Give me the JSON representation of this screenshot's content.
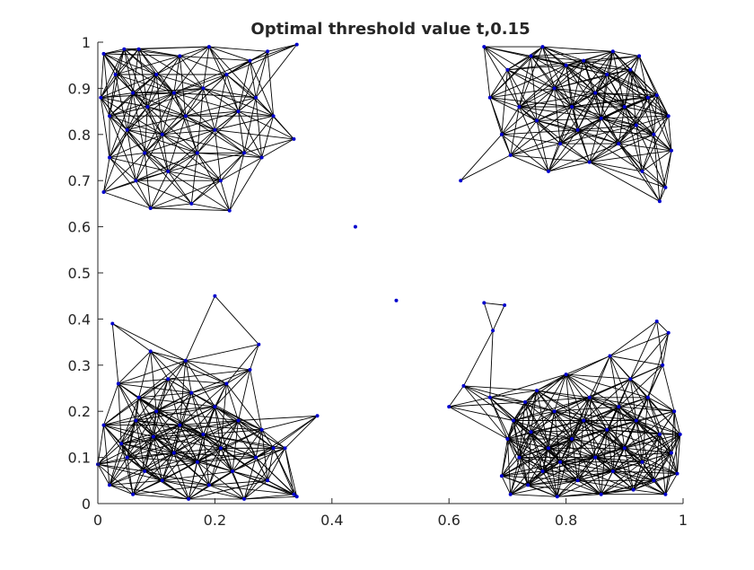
{
  "chart_data": {
    "type": "scatter",
    "title": "Optimal threshold value t,0.15",
    "xlabel": "",
    "ylabel": "",
    "xlim": [
      0,
      1
    ],
    "ylim": [
      0,
      1
    ],
    "xticks": [
      "0",
      "0.2",
      "0.4",
      "0.6",
      "0.8",
      "1"
    ],
    "yticks": [
      "0",
      "0.1",
      "0.2",
      "0.3",
      "0.4",
      "0.5",
      "0.6",
      "0.7",
      "0.8",
      "0.9",
      "1"
    ],
    "threshold": 0.15,
    "grid": false,
    "colors": {
      "point": "#0000cc",
      "edge": "#000000",
      "axis": "#262626"
    },
    "clusters": [
      {
        "label": "upper-left",
        "points": [
          [
            0.005,
            0.88
          ],
          [
            0.01,
            0.975
          ],
          [
            0.01,
            0.675
          ],
          [
            0.02,
            0.84
          ],
          [
            0.02,
            0.75
          ],
          [
            0.03,
            0.93
          ],
          [
            0.045,
            0.985
          ],
          [
            0.05,
            0.81
          ],
          [
            0.06,
            0.89
          ],
          [
            0.065,
            0.7
          ],
          [
            0.07,
            0.985
          ],
          [
            0.08,
            0.76
          ],
          [
            0.085,
            0.86
          ],
          [
            0.09,
            0.64
          ],
          [
            0.1,
            0.93
          ],
          [
            0.11,
            0.8
          ],
          [
            0.12,
            0.72
          ],
          [
            0.13,
            0.89
          ],
          [
            0.14,
            0.97
          ],
          [
            0.15,
            0.84
          ],
          [
            0.16,
            0.65
          ],
          [
            0.17,
            0.76
          ],
          [
            0.18,
            0.9
          ],
          [
            0.19,
            0.99
          ],
          [
            0.2,
            0.81
          ],
          [
            0.21,
            0.7
          ],
          [
            0.22,
            0.93
          ],
          [
            0.225,
            0.635
          ],
          [
            0.24,
            0.85
          ],
          [
            0.25,
            0.76
          ],
          [
            0.26,
            0.96
          ],
          [
            0.27,
            0.88
          ],
          [
            0.28,
            0.75
          ],
          [
            0.29,
            0.98
          ],
          [
            0.3,
            0.84
          ],
          [
            0.335,
            0.79
          ],
          [
            0.34,
            0.995
          ]
        ]
      },
      {
        "label": "upper-right",
        "points": [
          [
            0.62,
            0.7
          ],
          [
            0.66,
            0.99
          ],
          [
            0.67,
            0.88
          ],
          [
            0.69,
            0.8
          ],
          [
            0.7,
            0.94
          ],
          [
            0.705,
            0.755
          ],
          [
            0.72,
            0.86
          ],
          [
            0.74,
            0.97
          ],
          [
            0.75,
            0.83
          ],
          [
            0.76,
            0.99
          ],
          [
            0.77,
            0.72
          ],
          [
            0.78,
            0.9
          ],
          [
            0.79,
            0.78
          ],
          [
            0.8,
            0.95
          ],
          [
            0.81,
            0.86
          ],
          [
            0.82,
            0.81
          ],
          [
            0.83,
            0.96
          ],
          [
            0.84,
            0.74
          ],
          [
            0.85,
            0.89
          ],
          [
            0.86,
            0.835
          ],
          [
            0.87,
            0.93
          ],
          [
            0.88,
            0.98
          ],
          [
            0.89,
            0.78
          ],
          [
            0.9,
            0.86
          ],
          [
            0.91,
            0.94
          ],
          [
            0.92,
            0.82
          ],
          [
            0.925,
            0.97
          ],
          [
            0.93,
            0.72
          ],
          [
            0.94,
            0.88
          ],
          [
            0.95,
            0.8
          ],
          [
            0.955,
            0.885
          ],
          [
            0.96,
            0.655
          ],
          [
            0.97,
            0.685
          ],
          [
            0.975,
            0.84
          ],
          [
            0.98,
            0.765
          ]
        ]
      },
      {
        "label": "lower-left",
        "points": [
          [
            0.0,
            0.085
          ],
          [
            0.01,
            0.17
          ],
          [
            0.02,
            0.04
          ],
          [
            0.025,
            0.39
          ],
          [
            0.035,
            0.26
          ],
          [
            0.04,
            0.13
          ],
          [
            0.05,
            0.1
          ],
          [
            0.06,
            0.02
          ],
          [
            0.065,
            0.18
          ],
          [
            0.07,
            0.23
          ],
          [
            0.08,
            0.07
          ],
          [
            0.09,
            0.33
          ],
          [
            0.095,
            0.145
          ],
          [
            0.1,
            0.2
          ],
          [
            0.11,
            0.05
          ],
          [
            0.12,
            0.27
          ],
          [
            0.13,
            0.11
          ],
          [
            0.14,
            0.17
          ],
          [
            0.15,
            0.31
          ],
          [
            0.155,
            0.01
          ],
          [
            0.16,
            0.24
          ],
          [
            0.17,
            0.09
          ],
          [
            0.18,
            0.15
          ],
          [
            0.19,
            0.04
          ],
          [
            0.2,
            0.21
          ],
          [
            0.2,
            0.45
          ],
          [
            0.21,
            0.12
          ],
          [
            0.22,
            0.26
          ],
          [
            0.23,
            0.07
          ],
          [
            0.24,
            0.18
          ],
          [
            0.25,
            0.01
          ],
          [
            0.26,
            0.29
          ],
          [
            0.27,
            0.1
          ],
          [
            0.275,
            0.345
          ],
          [
            0.28,
            0.16
          ],
          [
            0.29,
            0.05
          ],
          [
            0.3,
            0.12
          ],
          [
            0.32,
            0.12
          ],
          [
            0.335,
            0.02
          ],
          [
            0.34,
            0.015
          ],
          [
            0.375,
            0.19
          ]
        ]
      },
      {
        "label": "lower-right",
        "points": [
          [
            0.51,
            0.44
          ],
          [
            0.6,
            0.21
          ],
          [
            0.625,
            0.255
          ],
          [
            0.66,
            0.435
          ],
          [
            0.67,
            0.23
          ],
          [
            0.675,
            0.375
          ],
          [
            0.69,
            0.06
          ],
          [
            0.695,
            0.43
          ],
          [
            0.7,
            0.14
          ],
          [
            0.705,
            0.02
          ],
          [
            0.71,
            0.18
          ],
          [
            0.72,
            0.1
          ],
          [
            0.73,
            0.22
          ],
          [
            0.735,
            0.04
          ],
          [
            0.74,
            0.155
          ],
          [
            0.75,
            0.245
          ],
          [
            0.76,
            0.07
          ],
          [
            0.77,
            0.12
          ],
          [
            0.78,
            0.2
          ],
          [
            0.785,
            0.015
          ],
          [
            0.79,
            0.09
          ],
          [
            0.8,
            0.28
          ],
          [
            0.81,
            0.14
          ],
          [
            0.82,
            0.05
          ],
          [
            0.83,
            0.18
          ],
          [
            0.84,
            0.23
          ],
          [
            0.85,
            0.1
          ],
          [
            0.86,
            0.02
          ],
          [
            0.87,
            0.16
          ],
          [
            0.875,
            0.32
          ],
          [
            0.88,
            0.07
          ],
          [
            0.89,
            0.21
          ],
          [
            0.9,
            0.12
          ],
          [
            0.91,
            0.27
          ],
          [
            0.915,
            0.03
          ],
          [
            0.92,
            0.18
          ],
          [
            0.93,
            0.09
          ],
          [
            0.94,
            0.23
          ],
          [
            0.95,
            0.05
          ],
          [
            0.955,
            0.395
          ],
          [
            0.96,
            0.15
          ],
          [
            0.965,
            0.3
          ],
          [
            0.97,
            0.02
          ],
          [
            0.975,
            0.37
          ],
          [
            0.98,
            0.11
          ],
          [
            0.985,
            0.2
          ],
          [
            0.99,
            0.065
          ],
          [
            0.995,
            0.15
          ]
        ]
      },
      {
        "label": "isolated",
        "points": [
          [
            0.44,
            0.6
          ]
        ]
      }
    ]
  }
}
